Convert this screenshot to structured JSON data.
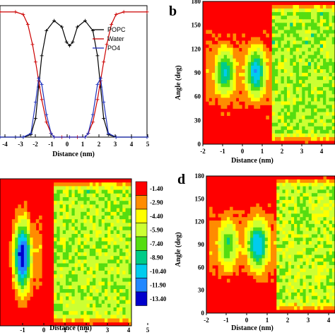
{
  "panels": {
    "a": {
      "xlabel": "Distance (nm)",
      "legend": [
        "POPC",
        "Water",
        "PO4"
      ],
      "xticks": [
        "-4",
        "-3",
        "-2",
        "-1",
        "0",
        "1",
        "2",
        "3",
        "4",
        "5"
      ]
    },
    "b": {
      "letter": "b",
      "xlabel": "Distance (nm)",
      "ylabel": "Angle (deg)",
      "yticks": [
        "0",
        "30",
        "60",
        "90",
        "120",
        "150",
        "180"
      ],
      "xticks": [
        "-2",
        "-1",
        "0",
        "1",
        "2",
        "3",
        "4"
      ]
    },
    "c": {
      "xlabel": "Distance (nm)",
      "xticks": [
        "-1",
        "0",
        "1",
        "2",
        "3",
        "4",
        "5"
      ]
    },
    "d": {
      "letter": "d",
      "xlabel": "Distance (nm)",
      "ylabel": "Angle (deg)",
      "yticks": [
        "0",
        "30",
        "60",
        "90",
        "120",
        "150",
        "180"
      ],
      "xticks": [
        "-2",
        "-1",
        "0",
        "1",
        "2",
        "3",
        "4"
      ]
    },
    "colorbar": {
      "levels": [
        "-1.40",
        "-2.90",
        "-4.40",
        "-5.90",
        "-7.40",
        "-8.90",
        "-10.40",
        "-11.90",
        "-13.40"
      ]
    }
  },
  "chart_data": [
    {
      "type": "line",
      "panel": "a",
      "xlabel": "Distance (nm)",
      "xlim": [
        -4.5,
        5
      ],
      "ylim": [
        0,
        1.05
      ],
      "series": [
        {
          "name": "POPC",
          "color": "#000000",
          "x": [
            -4.5,
            -3.5,
            -3.0,
            -2.5,
            -2.2,
            -2.0,
            -1.8,
            -1.5,
            -1.0,
            -0.5,
            -0.2,
            0.0,
            0.2,
            0.5,
            1.0,
            1.5,
            1.8,
            2.0,
            2.2,
            2.5,
            3.0,
            4.0,
            5.0
          ],
          "y": [
            0.0,
            0.0,
            0.0,
            0.02,
            0.15,
            0.4,
            0.65,
            0.85,
            0.93,
            0.88,
            0.76,
            0.73,
            0.76,
            0.88,
            0.93,
            0.85,
            0.65,
            0.4,
            0.15,
            0.02,
            0.0,
            0.0,
            0.0
          ]
        },
        {
          "name": "Water",
          "color": "#cc0000",
          "x": [
            -4.5,
            -3.5,
            -3.0,
            -2.7,
            -2.4,
            -2.2,
            -2.0,
            -1.8,
            -1.5,
            -1.2,
            -1.0,
            -0.5,
            0.0,
            0.5,
            1.0,
            1.2,
            1.5,
            1.8,
            2.0,
            2.2,
            2.4,
            2.7,
            3.0,
            3.5,
            5.0
          ],
          "y": [
            1.0,
            1.0,
            0.98,
            0.9,
            0.74,
            0.6,
            0.45,
            0.3,
            0.12,
            0.03,
            0.0,
            0.0,
            0.0,
            0.0,
            0.0,
            0.03,
            0.12,
            0.3,
            0.45,
            0.6,
            0.74,
            0.9,
            0.98,
            1.0,
            1.0
          ]
        },
        {
          "name": "PO4",
          "color": "#2233bb",
          "x": [
            -4.5,
            -3.0,
            -2.5,
            -2.2,
            -2.0,
            -1.8,
            -1.5,
            -1.2,
            -1.0,
            0.0,
            1.0,
            1.2,
            1.5,
            1.8,
            2.0,
            2.2,
            2.5,
            3.0,
            5.0
          ],
          "y": [
            0.0,
            0.0,
            0.03,
            0.28,
            0.47,
            0.42,
            0.18,
            0.03,
            0.0,
            0.0,
            0.0,
            0.03,
            0.18,
            0.42,
            0.47,
            0.28,
            0.03,
            0.0,
            0.0
          ]
        }
      ]
    },
    {
      "type": "heatmap",
      "panel": "b",
      "xlabel": "Distance (nm)",
      "ylabel": "Angle (deg)",
      "xlim": [
        -2,
        4.5
      ],
      "ylim": [
        0,
        180
      ],
      "minima": [
        {
          "x": -0.9,
          "y": 90,
          "value": -8.9
        },
        {
          "x": 0.6,
          "y": 90,
          "value": -10.4
        }
      ]
    },
    {
      "type": "heatmap",
      "panel": "c",
      "xlabel": "Distance (nm)",
      "xlim": [
        -2,
        5
      ],
      "ylim": [
        0,
        180
      ],
      "minima": [
        {
          "x": -0.8,
          "y": 85,
          "value": -13.4
        }
      ]
    },
    {
      "type": "heatmap",
      "panel": "d",
      "xlabel": "Distance (nm)",
      "ylabel": "Angle (deg)",
      "xlim": [
        -2,
        4.5
      ],
      "ylim": [
        0,
        180
      ],
      "minima": [
        {
          "x": -0.9,
          "y": 90,
          "value": -7.4
        },
        {
          "x": 0.6,
          "y": 90,
          "value": -10.4
        }
      ]
    }
  ],
  "palette": [
    "#ff0000",
    "#ff8c00",
    "#ffff00",
    "#ccff33",
    "#55dd11",
    "#00cc88",
    "#00ccee",
    "#2288ff",
    "#0000cc"
  ]
}
